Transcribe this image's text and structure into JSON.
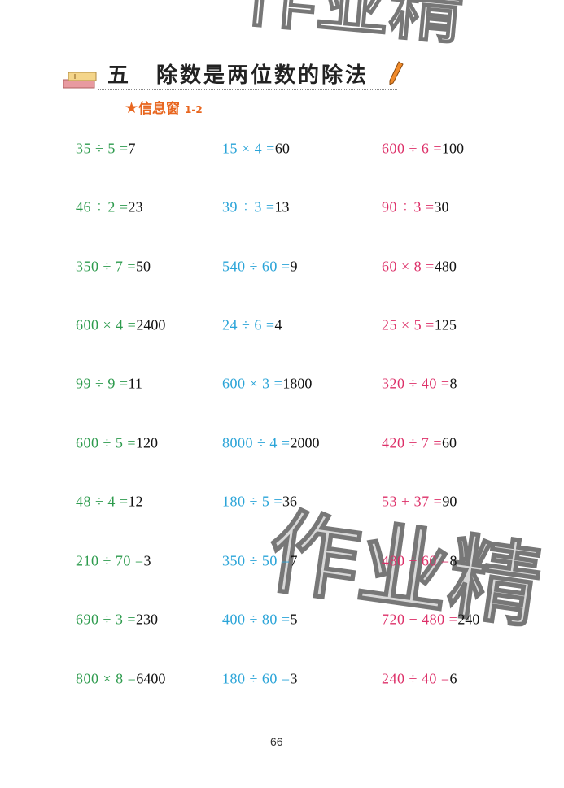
{
  "header": {
    "chapter_number": "五",
    "chapter_title": "除数是两位数的除法",
    "section": "信息窗",
    "section_range": "1-2"
  },
  "colors": {
    "column1": "#2d9b4d",
    "column2": "#2aa4d8",
    "column3": "#dd2f68",
    "section": "#e8661f"
  },
  "columns": [
    [
      {
        "q": "35 ÷ 5 =",
        "a": "7"
      },
      {
        "q": "46 ÷ 2 =",
        "a": "23"
      },
      {
        "q": "350 ÷ 7 =",
        "a": "50"
      },
      {
        "q": "600 × 4 =",
        "a": "2400"
      },
      {
        "q": "99 ÷ 9 =",
        "a": "11"
      },
      {
        "q": "600 ÷ 5 =",
        "a": "120"
      },
      {
        "q": "48 ÷ 4 =",
        "a": "12"
      },
      {
        "q": "210 ÷ 70 =",
        "a": "3"
      },
      {
        "q": "690 ÷ 3 =",
        "a": "230"
      },
      {
        "q": "800 × 8 =",
        "a": "6400"
      }
    ],
    [
      {
        "q": "15 × 4 =",
        "a": "60"
      },
      {
        "q": "39 ÷ 3 =",
        "a": "13"
      },
      {
        "q": "540 ÷ 60 =",
        "a": "9"
      },
      {
        "q": "24 ÷ 6 =",
        "a": "4"
      },
      {
        "q": "600 × 3 =",
        "a": "1800"
      },
      {
        "q": "8000 ÷ 4 =",
        "a": "2000"
      },
      {
        "q": "180 ÷ 5 =",
        "a": "36"
      },
      {
        "q": "350 ÷ 50 =",
        "a": "7"
      },
      {
        "q": "400 ÷ 80 =",
        "a": "5"
      },
      {
        "q": "180 ÷ 60 =",
        "a": "3"
      }
    ],
    [
      {
        "q": "600 ÷ 6 =",
        "a": "100"
      },
      {
        "q": "90 ÷ 3 =",
        "a": "30"
      },
      {
        "q": "60 × 8 =",
        "a": "480"
      },
      {
        "q": "25 × 5 =",
        "a": "125"
      },
      {
        "q": "320 ÷ 40 =",
        "a": "8"
      },
      {
        "q": "420 ÷ 7 =",
        "a": "60"
      },
      {
        "q": "53 + 37 =",
        "a": "90"
      },
      {
        "q": "480 ÷ 60 =",
        "a": "8"
      },
      {
        "q": "720 − 480 =",
        "a": "240"
      },
      {
        "q": "240 ÷ 40 =",
        "a": "6"
      }
    ]
  ],
  "page_number": "66",
  "watermark": "作业精"
}
